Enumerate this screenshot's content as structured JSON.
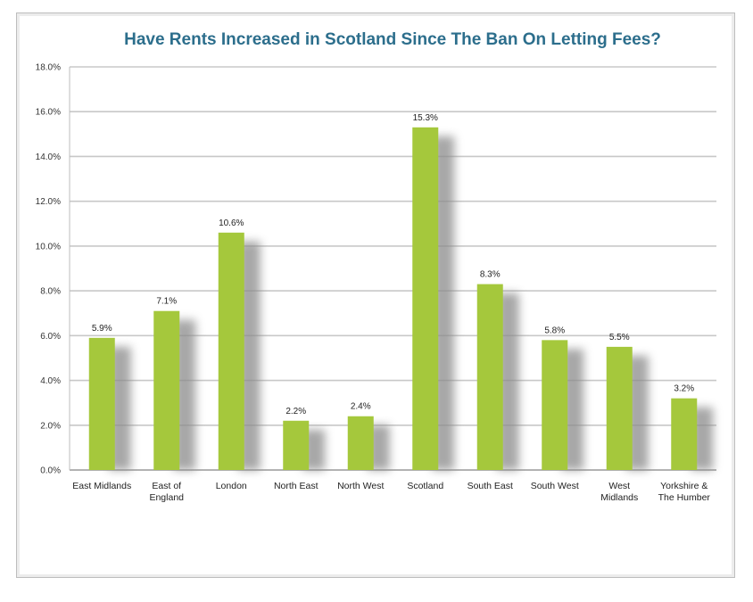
{
  "chart_data": {
    "type": "bar",
    "title": "Have Rents Increased in Scotland Since The Ban On Letting Fees?",
    "xlabel": "",
    "ylabel": "",
    "ylim": [
      0,
      18
    ],
    "y_ticks": [
      "0.0%",
      "2.0%",
      "4.0%",
      "6.0%",
      "8.0%",
      "10.0%",
      "12.0%",
      "14.0%",
      "16.0%",
      "18.0%"
    ],
    "categories": [
      [
        "East Midlands"
      ],
      [
        "East of",
        "England"
      ],
      [
        "London"
      ],
      [
        "North East"
      ],
      [
        "North West"
      ],
      [
        "Scotland"
      ],
      [
        "South East"
      ],
      [
        "South West"
      ],
      [
        "West",
        "Midlands"
      ],
      [
        "Yorkshire &",
        "The Humber"
      ]
    ],
    "values": [
      5.9,
      7.1,
      10.6,
      2.2,
      2.4,
      15.3,
      8.3,
      5.8,
      5.5,
      3.2
    ],
    "data_labels": [
      "5.9%",
      "7.1%",
      "10.6%",
      "2.2%",
      "2.4%",
      "15.3%",
      "8.3%",
      "5.8%",
      "5.5%",
      "3.2%"
    ],
    "bar_color": "#a5c83c",
    "grid": true,
    "legend": "none"
  }
}
